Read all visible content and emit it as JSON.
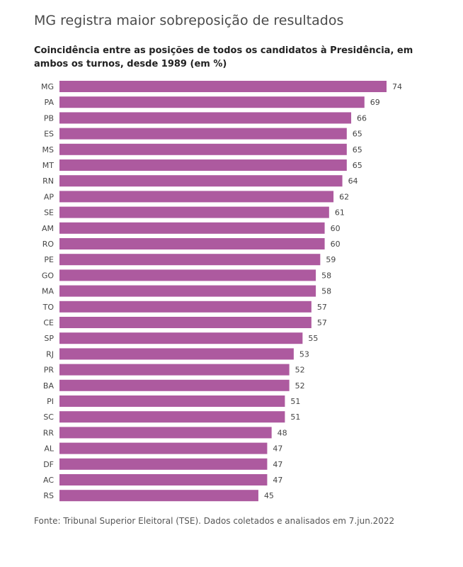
{
  "chart_data": {
    "type": "bar",
    "orientation": "horizontal",
    "title": "MG registra maior sobreposição de resultados",
    "subtitle": "Coincidência entre as posições de todos os candidatos à Presidência, em ambos os turnos, desde 1989 (em %)",
    "categories": [
      "MG",
      "PA",
      "PB",
      "ES",
      "MS",
      "MT",
      "RN",
      "AP",
      "SE",
      "AM",
      "RO",
      "PE",
      "GO",
      "MA",
      "TO",
      "CE",
      "SP",
      "RJ",
      "PR",
      "BA",
      "PI",
      "SC",
      "RR",
      "AL",
      "DF",
      "AC",
      "RS"
    ],
    "values": [
      74,
      69,
      66,
      65,
      65,
      65,
      64,
      62,
      61,
      60,
      60,
      59,
      58,
      58,
      57,
      57,
      55,
      53,
      52,
      52,
      51,
      51,
      48,
      47,
      47,
      47,
      45
    ],
    "xlim": [
      0,
      74
    ],
    "grid": false,
    "legend": "none",
    "bar_color": "#ad5a9f"
  },
  "source": "Fonte: Tribunal Superior Eleitoral (TSE). Dados coletados e analisados em 7.jun.2022"
}
